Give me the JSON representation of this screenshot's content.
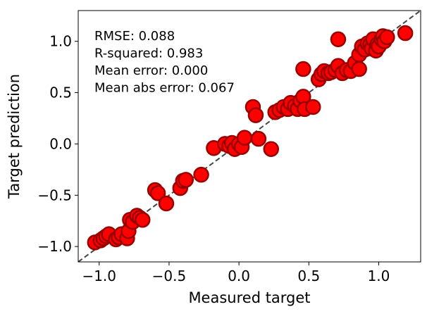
{
  "chart_data": {
    "type": "scatter",
    "xlabel": "Measured target",
    "ylabel": "Target prediction",
    "xlim": [
      -1.15,
      1.3
    ],
    "ylim": [
      -1.15,
      1.3
    ],
    "xticks": [
      -1.0,
      -0.5,
      0.0,
      0.5,
      1.0
    ],
    "yticks": [
      -1.0,
      -0.5,
      0.0,
      0.5,
      1.0
    ],
    "xtick_labels": [
      "−1.0",
      "−0.5",
      "0.0",
      "0.5",
      "1.0"
    ],
    "ytick_labels": [
      "−1.0",
      "−0.5",
      "0.0",
      "0.5",
      "1.0"
    ],
    "grid": false,
    "reference_line": {
      "style": "dashed",
      "color": "#444444",
      "description": "y = x"
    },
    "marker": {
      "fill": "#ff0000",
      "edge": "#990000"
    },
    "annotations": [
      "RMSE: 0.088",
      "R-squared: 0.983",
      "Mean error: 0.000",
      "Mean abs error: 0.067"
    ],
    "points": [
      [
        -1.03,
        -0.96
      ],
      [
        -0.99,
        -0.94
      ],
      [
        -0.97,
        -0.92
      ],
      [
        -0.95,
        -0.9
      ],
      [
        -0.93,
        -0.88
      ],
      [
        -0.88,
        -0.93
      ],
      [
        -0.86,
        -0.91
      ],
      [
        -0.84,
        -0.88
      ],
      [
        -0.8,
        -0.92
      ],
      [
        -0.79,
        -0.85
      ],
      [
        -0.78,
        -0.74
      ],
      [
        -0.76,
        -0.76
      ],
      [
        -0.73,
        -0.7
      ],
      [
        -0.71,
        -0.72
      ],
      [
        -0.69,
        -0.74
      ],
      [
        -0.6,
        -0.45
      ],
      [
        -0.58,
        -0.48
      ],
      [
        -0.52,
        -0.58
      ],
      [
        -0.42,
        -0.43
      ],
      [
        -0.4,
        -0.36
      ],
      [
        -0.38,
        -0.35
      ],
      [
        -0.27,
        -0.3
      ],
      [
        -0.18,
        -0.04
      ],
      [
        -0.1,
        0.0
      ],
      [
        -0.07,
        -0.02
      ],
      [
        -0.05,
        0.01
      ],
      [
        -0.03,
        -0.05
      ],
      [
        0.0,
        0.0
      ],
      [
        0.02,
        -0.03
      ],
      [
        0.04,
        0.06
      ],
      [
        0.1,
        0.36
      ],
      [
        0.12,
        0.28
      ],
      [
        0.14,
        0.05
      ],
      [
        0.23,
        -0.05
      ],
      [
        0.26,
        0.31
      ],
      [
        0.29,
        0.33
      ],
      [
        0.32,
        0.36
      ],
      [
        0.35,
        0.34
      ],
      [
        0.37,
        0.4
      ],
      [
        0.4,
        0.37
      ],
      [
        0.42,
        0.34
      ],
      [
        0.44,
        0.42
      ],
      [
        0.46,
        0.46
      ],
      [
        0.46,
        0.73
      ],
      [
        0.47,
        0.34
      ],
      [
        0.53,
        0.36
      ],
      [
        0.57,
        0.63
      ],
      [
        0.59,
        0.68
      ],
      [
        0.61,
        0.71
      ],
      [
        0.64,
        0.69
      ],
      [
        0.66,
        0.7
      ],
      [
        0.69,
        0.72
      ],
      [
        0.71,
        0.76
      ],
      [
        0.71,
        1.02
      ],
      [
        0.74,
        0.69
      ],
      [
        0.77,
        0.72
      ],
      [
        0.8,
        0.71
      ],
      [
        0.83,
        0.79
      ],
      [
        0.86,
        0.73
      ],
      [
        0.86,
        0.87
      ],
      [
        0.88,
        0.95
      ],
      [
        0.9,
        0.92
      ],
      [
        0.92,
        0.98
      ],
      [
        0.94,
        0.97
      ],
      [
        0.95,
        0.93
      ],
      [
        0.96,
        1.02
      ],
      [
        0.98,
        0.91
      ],
      [
        0.99,
        0.97
      ],
      [
        1.0,
        0.95
      ],
      [
        1.02,
        1.02
      ],
      [
        1.03,
        1.05
      ],
      [
        1.04,
        1.0
      ],
      [
        1.06,
        1.04
      ],
      [
        1.19,
        1.08
      ]
    ]
  }
}
